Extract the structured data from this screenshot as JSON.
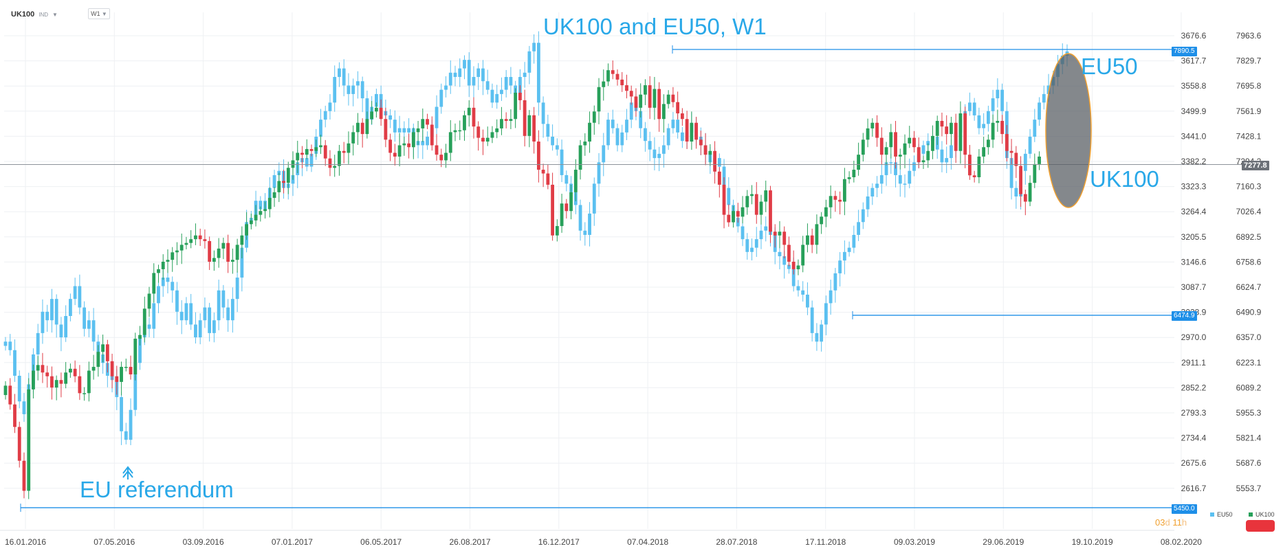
{
  "header": {
    "symbol": "UK100",
    "type_tag": "IND",
    "timeframe": "W1"
  },
  "annotations": {
    "title": "UK100 and EU50, W1",
    "eu50": "EU50",
    "uk100": "UK100",
    "referendum": "EU referendum"
  },
  "price_tags": {
    "top_line": "7890.5",
    "current": "7277.8",
    "mid_line": "6474.9",
    "bottom_line": "5450.0"
  },
  "legend": [
    {
      "name": "EU50",
      "color": "#5bc0f0"
    },
    {
      "name": "UK100",
      "color": "#27a05a"
    }
  ],
  "countdown": {
    "days": "03",
    "d": "d",
    "hours": "11",
    "h": "h"
  },
  "colors": {
    "eu50": "#5bc0f0",
    "uk100_up": "#27a05a",
    "uk100_down": "#e03c46",
    "line": "#1e8fe8",
    "ellipse_fill": "#555a60",
    "ellipse_stroke": "#f0a030"
  },
  "chart_data": {
    "type": "candlestick",
    "title": "",
    "x_ticks": [
      "16.01.2016",
      "07.05.2016",
      "03.09.2016",
      "07.01.2017",
      "06.05.2017",
      "26.08.2017",
      "16.12.2017",
      "07.04.2018",
      "28.07.2018",
      "17.11.2018",
      "09.03.2019",
      "29.06.2019",
      "19.10.2019",
      "08.02.2020"
    ],
    "y_left_ticks": [
      3676.6,
      3617.7,
      3558.8,
      3499.9,
      3441.0,
      3382.2,
      3323.3,
      3264.4,
      3205.5,
      3146.6,
      3087.7,
      3028.9,
      2970.0,
      2911.1,
      2852.2,
      2793.3,
      2734.4,
      2675.6,
      2616.7
    ],
    "y_right_ticks": [
      7963.6,
      7829.7,
      7695.8,
      7561.9,
      7428.1,
      7294.2,
      7160.3,
      7026.4,
      6892.5,
      6758.6,
      6624.7,
      6490.9,
      6357.0,
      6223.1,
      6089.2,
      5955.3,
      5821.4,
      5687.6,
      5553.7
    ],
    "left_axis_series": "EU50",
    "right_axis_series": "UK100",
    "horizontal_lines": [
      7890.5,
      6474.9,
      5450.0
    ],
    "current_price": 7277.8,
    "eu50_close": [
      2960,
      2940,
      2880,
      2820,
      2790,
      2860,
      2930,
      2980,
      3030,
      3010,
      3060,
      3000,
      2970,
      3020,
      3060,
      3090,
      3040,
      2990,
      3010,
      2960,
      2930,
      2910,
      2880,
      2870,
      2830,
      2750,
      2730,
      2800,
      2910,
      2970,
      3000,
      2990,
      3050,
      3090,
      3110,
      3100,
      3080,
      3030,
      3010,
      3050,
      3000,
      2970,
      3010,
      3040,
      2980,
      3010,
      3080,
      3040,
      3010,
      3060,
      3110,
      3180,
      3240,
      3250,
      3290,
      3270,
      3290,
      3320,
      3350,
      3360,
      3320,
      3330,
      3350,
      3380,
      3390,
      3370,
      3400,
      3440,
      3480,
      3500,
      3520,
      3580,
      3600,
      3560,
      3540,
      3560,
      3570,
      3530,
      3480,
      3510,
      3540,
      3500,
      3490,
      3480,
      3450,
      3460,
      3450,
      3460,
      3420,
      3430,
      3420,
      3440,
      3460,
      3510,
      3550,
      3560,
      3590,
      3580,
      3600,
      3620,
      3560,
      3580,
      3600,
      3570,
      3550,
      3520,
      3540,
      3550,
      3580,
      3560,
      3540,
      3580,
      3590,
      3640,
      3660,
      3520,
      3470,
      3440,
      3420,
      3410,
      3350,
      3330,
      3310,
      3280,
      3220,
      3210,
      3260,
      3330,
      3380,
      3420,
      3480,
      3460,
      3420,
      3450,
      3480,
      3520,
      3500,
      3460,
      3430,
      3410,
      3390,
      3400,
      3420,
      3460,
      3480,
      3450,
      3430,
      3450,
      3470,
      3440,
      3420,
      3400,
      3380,
      3390,
      3370,
      3320,
      3280,
      3250,
      3230,
      3200,
      3170,
      3180,
      3200,
      3220,
      3230,
      3210,
      3170,
      3160,
      3140,
      3130,
      3090,
      3080,
      3070,
      3040,
      2980,
      2960,
      3000,
      3050,
      3080,
      3120,
      3150,
      3170,
      3180,
      3210,
      3240,
      3270,
      3300,
      3320,
      3330,
      3350,
      3380,
      3380,
      3350,
      3330,
      3330,
      3360,
      3380,
      3400,
      3420,
      3430,
      3440,
      3410,
      3380,
      3390,
      3420,
      3450,
      3480,
      3500,
      3520,
      3490,
      3460,
      3470,
      3500,
      3530,
      3550,
      3500,
      3390,
      3320,
      3300,
      3360,
      3400,
      3440,
      3480,
      3520,
      3540,
      3560,
      3580,
      3610,
      3630,
      3640
    ],
    "uk100_close": [
      6100,
      6000,
      5880,
      5700,
      5540,
      6080,
      6180,
      6210,
      6170,
      6150,
      6090,
      6130,
      6110,
      6170,
      6190,
      6150,
      6060,
      6060,
      6180,
      6200,
      6280,
      6320,
      6230,
      6150,
      6120,
      6200,
      6200,
      6160,
      6350,
      6370,
      6510,
      6590,
      6700,
      6720,
      6760,
      6770,
      6810,
      6820,
      6850,
      6860,
      6880,
      6900,
      6880,
      6870,
      6760,
      6780,
      6830,
      6860,
      6760,
      6770,
      6850,
      6900,
      6960,
      6980,
      7010,
      7030,
      7040,
      7100,
      7130,
      7190,
      7180,
      7260,
      7300,
      7340,
      7330,
      7360,
      7350,
      7370,
      7380,
      7310,
      7260,
      7270,
      7350,
      7340,
      7390,
      7450,
      7500,
      7440,
      7520,
      7560,
      7580,
      7520,
      7410,
      7340,
      7320,
      7380,
      7390,
      7370,
      7450,
      7470,
      7520,
      7490,
      7380,
      7330,
      7300,
      7340,
      7450,
      7460,
      7460,
      7540,
      7580,
      7480,
      7420,
      7400,
      7420,
      7450,
      7470,
      7520,
      7510,
      7520,
      7660,
      7620,
      7430,
      7540,
      7400,
      7250,
      7230,
      7170,
      6900,
      6950,
      7070,
      7030,
      7130,
      7250,
      7380,
      7400,
      7500,
      7560,
      7690,
      7720,
      7780,
      7760,
      7730,
      7700,
      7670,
      7640,
      7580,
      7650,
      7700,
      7580,
      7680,
      7520,
      7600,
      7650,
      7610,
      7550,
      7520,
      7400,
      7500,
      7410,
      7380,
      7330,
      7350,
      7240,
      7170,
      7010,
      6970,
      7030,
      7000,
      7050,
      7110,
      7120,
      7010,
      7080,
      7140,
      6920,
      6900,
      6920,
      6850,
      6760,
      6720,
      6740,
      6850,
      6900,
      6850,
      6960,
      7000,
      7050,
      7110,
      7090,
      7080,
      7200,
      7210,
      7250,
      7330,
      7410,
      7470,
      7500,
      7420,
      7330,
      7370,
      7450,
      7320,
      7330,
      7390,
      7420,
      7370,
      7290,
      7300,
      7350,
      7430,
      7510,
      7480,
      7440,
      7500,
      7350,
      7550,
      7330,
      7220,
      7210,
      7320,
      7370,
      7410,
      7500,
      7510,
      7440,
      7350,
      7340,
      7270,
      7120,
      7080,
      7180,
      7280,
      7320
    ]
  }
}
